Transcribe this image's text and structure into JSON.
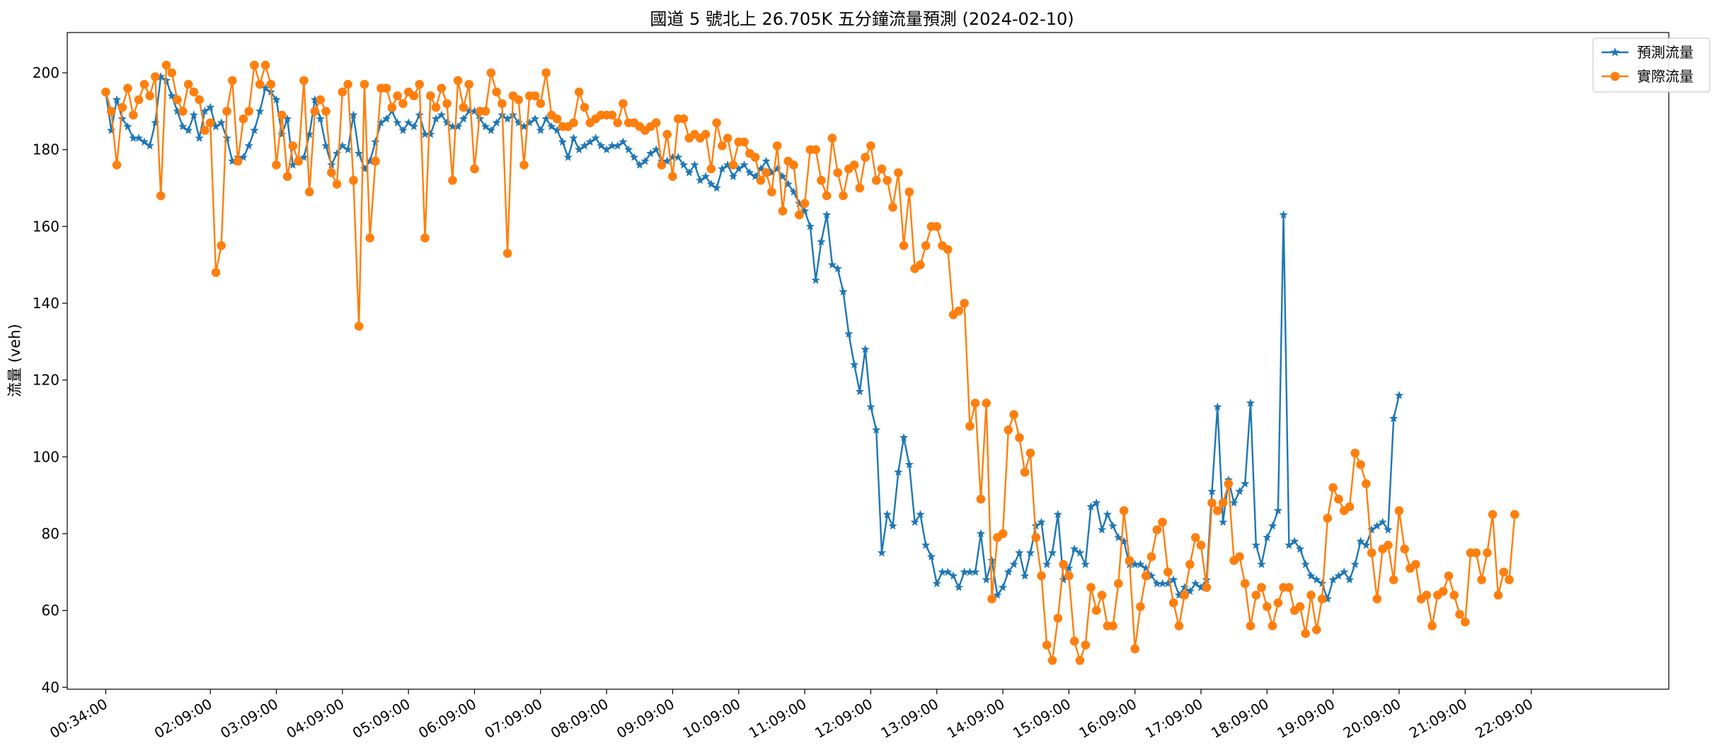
{
  "chart_data": {
    "type": "line",
    "title": "國道 5 號北上 26.705K 五分鐘流量預測 (2024-02-10)",
    "xlabel": "",
    "ylabel": "流量 (veh)",
    "ylim": [
      39.5,
      210.5
    ],
    "yticks": [
      40,
      60,
      80,
      100,
      120,
      140,
      160,
      180,
      200
    ],
    "grid": false,
    "legend_position": "top-right",
    "x_tick_labels": [
      "00:34:00",
      "02:09:00",
      "03:09:00",
      "04:09:00",
      "05:09:00",
      "06:09:00",
      "07:09:00",
      "08:09:00",
      "09:09:00",
      "10:09:00",
      "11:09:00",
      "12:09:00",
      "13:09:00",
      "14:09:00",
      "15:09:00",
      "16:09:00",
      "17:09:00",
      "18:09:00",
      "19:09:00",
      "20:09:00",
      "21:09:00",
      "22:09:00"
    ],
    "x_tick_minutes": [
      34,
      129,
      189,
      249,
      309,
      369,
      429,
      489,
      549,
      609,
      669,
      729,
      789,
      849,
      909,
      969,
      1029,
      1089,
      1149,
      1209,
      1269,
      1329
    ],
    "x_start_minute": 34,
    "x_step_minutes": 5,
    "x_range_minutes": [
      -1,
      1454
    ],
    "series": [
      {
        "name": "預測流量",
        "color": "#1f77b4",
        "marker": "star",
        "values": [
          195,
          185,
          193,
          188,
          186,
          183,
          183,
          182,
          181,
          187,
          199,
          198,
          194,
          190,
          186,
          185,
          189,
          183,
          190,
          191,
          186,
          187,
          183,
          177,
          178,
          178,
          181,
          185,
          190,
          196,
          195,
          193,
          184,
          188,
          176,
          177,
          178,
          184,
          193,
          188,
          181,
          176,
          179,
          181,
          180,
          189,
          179,
          175,
          177,
          182,
          187,
          188,
          190,
          187,
          185,
          187,
          186,
          189,
          184,
          184,
          188,
          189,
          187,
          186,
          186,
          188,
          190,
          190,
          188,
          186,
          185,
          187,
          189,
          188,
          189,
          187,
          186,
          187,
          188,
          185,
          188,
          186,
          185,
          182,
          178,
          183,
          180,
          181,
          182,
          183,
          181,
          180,
          181,
          181,
          182,
          180,
          178,
          176,
          177,
          179,
          180,
          177,
          177,
          178,
          178,
          176,
          174,
          176,
          172,
          173,
          171,
          170,
          175,
          176,
          173,
          175,
          176,
          174,
          173,
          175,
          177,
          174,
          175,
          173,
          171,
          169,
          166,
          164,
          160,
          146,
          156,
          163,
          150,
          149,
          143,
          132,
          124,
          117,
          128,
          113,
          107,
          75,
          85,
          82,
          96,
          105,
          98,
          83,
          85,
          77,
          74,
          67,
          70,
          70,
          69,
          66,
          70,
          70,
          70,
          80,
          68,
          73,
          64,
          66,
          70,
          72,
          75,
          69,
          75,
          82,
          83,
          72,
          75,
          85,
          68,
          71,
          76,
          75,
          72,
          87,
          88,
          81,
          85,
          82,
          79,
          78,
          72,
          72,
          72,
          71,
          69,
          67,
          67,
          67,
          68,
          64,
          66,
          65,
          67,
          66,
          68,
          91,
          113,
          83,
          94,
          88,
          91,
          93,
          114,
          77,
          72,
          79,
          82,
          86,
          163,
          77,
          78,
          76,
          72,
          69,
          68,
          67,
          63,
          68,
          69,
          70,
          68,
          72,
          78,
          77,
          81,
          82,
          83,
          81,
          110,
          116
        ]
      },
      {
        "name": "實際流量",
        "color": "#ff7f0e",
        "marker": "circle",
        "values": [
          195,
          190,
          176,
          191,
          196,
          189,
          193,
          197,
          194,
          199,
          168,
          202,
          200,
          193,
          190,
          197,
          195,
          193,
          185,
          187,
          148,
          155,
          190,
          198,
          177,
          188,
          190,
          202,
          197,
          202,
          197,
          176,
          189,
          173,
          181,
          177,
          198,
          169,
          190,
          193,
          190,
          174,
          171,
          195,
          197,
          172,
          134,
          197,
          157,
          177,
          196,
          196,
          191,
          194,
          192,
          195,
          194,
          197,
          157,
          194,
          191,
          196,
          192,
          172,
          198,
          191,
          197,
          175,
          190,
          190,
          200,
          195,
          192,
          153,
          194,
          193,
          176,
          194,
          194,
          192,
          200,
          189,
          188,
          186,
          186,
          187,
          195,
          191,
          187,
          188,
          189,
          189,
          189,
          187,
          192,
          187,
          187,
          186,
          185,
          186,
          187,
          176,
          184,
          173,
          188,
          188,
          183,
          184,
          183,
          184,
          175,
          187,
          181,
          183,
          176,
          182,
          182,
          179,
          178,
          172,
          174,
          169,
          181,
          164,
          177,
          176,
          163,
          166,
          180,
          180,
          172,
          168,
          183,
          174,
          168,
          175,
          176,
          170,
          178,
          181,
          172,
          175,
          172,
          165,
          174,
          155,
          169,
          149,
          150,
          155,
          160,
          160,
          155,
          154,
          137,
          138,
          140,
          108,
          114,
          89,
          114,
          63,
          79,
          80,
          107,
          111,
          105,
          96,
          101,
          79,
          69,
          51,
          47,
          58,
          72,
          69,
          52,
          47,
          51,
          66,
          60,
          64,
          56,
          56,
          67,
          86,
          73,
          50,
          61,
          69,
          74,
          81,
          83,
          70,
          62,
          56,
          64,
          72,
          79,
          77,
          66,
          88,
          86,
          88,
          93,
          73,
          74,
          67,
          56,
          64,
          66,
          61,
          56,
          62,
          66,
          66,
          60,
          61,
          54,
          64,
          55,
          63,
          84,
          92,
          89,
          86,
          87,
          101,
          98,
          93,
          75,
          63,
          76,
          77,
          68,
          86,
          76,
          71,
          72,
          63,
          64,
          56,
          64,
          65,
          69,
          64,
          59,
          57,
          75,
          75,
          68,
          75,
          85,
          64,
          70,
          68,
          85
        ]
      }
    ]
  }
}
